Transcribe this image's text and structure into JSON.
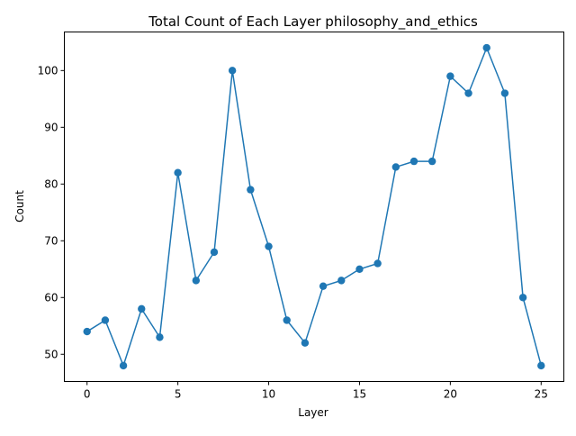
{
  "chart_data": {
    "type": "line",
    "title": "Total Count of Each Layer philosophy_and_ethics",
    "xlabel": "Layer",
    "ylabel": "Count",
    "xlim": [
      -1.25,
      26.25
    ],
    "ylim": [
      45.2,
      106.8
    ],
    "x_ticks": [
      0,
      5,
      10,
      15,
      20,
      25
    ],
    "y_ticks": [
      50,
      60,
      70,
      80,
      90,
      100
    ],
    "grid": false,
    "series": [
      {
        "color": "#1f77b4",
        "marker": "circle",
        "x": [
          0,
          1,
          2,
          3,
          4,
          5,
          6,
          7,
          8,
          9,
          10,
          11,
          12,
          13,
          14,
          15,
          16,
          17,
          18,
          19,
          20,
          21,
          22,
          23,
          24,
          25
        ],
        "values": [
          54,
          56,
          48,
          58,
          53,
          82,
          63,
          68,
          100,
          79,
          69,
          56,
          52,
          62,
          63,
          65,
          66,
          83,
          84,
          84,
          99,
          96,
          104,
          96,
          60,
          48
        ]
      }
    ]
  }
}
